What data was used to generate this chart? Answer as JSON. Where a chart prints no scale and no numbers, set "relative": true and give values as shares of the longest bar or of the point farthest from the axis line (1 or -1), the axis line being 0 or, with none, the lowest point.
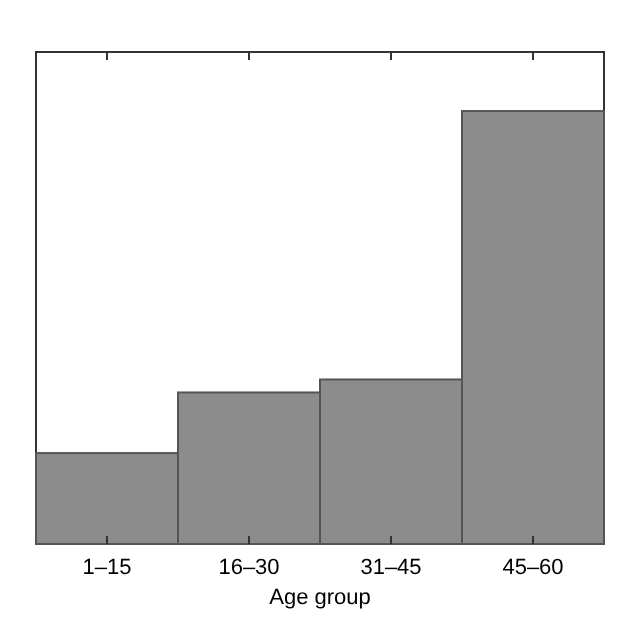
{
  "chart_data": {
    "type": "bar",
    "xlabel": "Age group",
    "categories": [
      "1–15",
      "16–30",
      "31–45",
      "45–60"
    ],
    "values": [
      0.21,
      0.35,
      0.38,
      1
    ],
    "color": "#8c8c8c",
    "relative": true
  }
}
